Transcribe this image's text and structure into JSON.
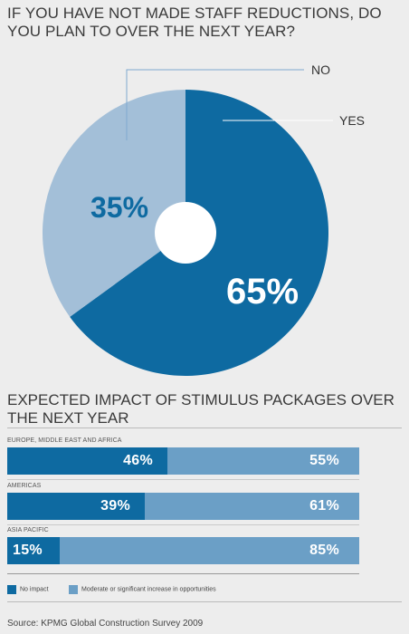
{
  "chart_data": [
    {
      "type": "pie",
      "title": "IF YOU HAVE NOT MADE STAFF REDUCTIONS, DO YOU PLAN TO OVER THE NEXT YEAR?",
      "categories": [
        "YES",
        "NO"
      ],
      "values": [
        65,
        35
      ],
      "value_labels": [
        "65%",
        "35%"
      ],
      "colors": [
        "#0e6aa1",
        "#a3bfd8"
      ],
      "center_hole_color": "#ffffff"
    },
    {
      "type": "bar",
      "stacked": true,
      "orientation": "horizontal",
      "title": "EXPECTED IMPACT OF STIMULUS PACKAGES OVER THE NEXT YEAR",
      "categories": [
        "EUROPE, MIDDLE EAST AND AFRICA",
        "AMERICAS",
        "ASIA PACIFIC"
      ],
      "series": [
        {
          "name": "No impact",
          "values": [
            46,
            39,
            15
          ],
          "labels": [
            "46%",
            "39%",
            "15%"
          ],
          "color": "#0e6aa1"
        },
        {
          "name": "Moderate or significant increase in opportunities",
          "values": [
            55,
            61,
            85
          ],
          "labels": [
            "55%",
            "61%",
            "85%"
          ],
          "color": "#6b9fc6"
        }
      ],
      "legend_position": "bottom"
    }
  ],
  "source": "Source: KPMG Global Construction Survey 2009"
}
